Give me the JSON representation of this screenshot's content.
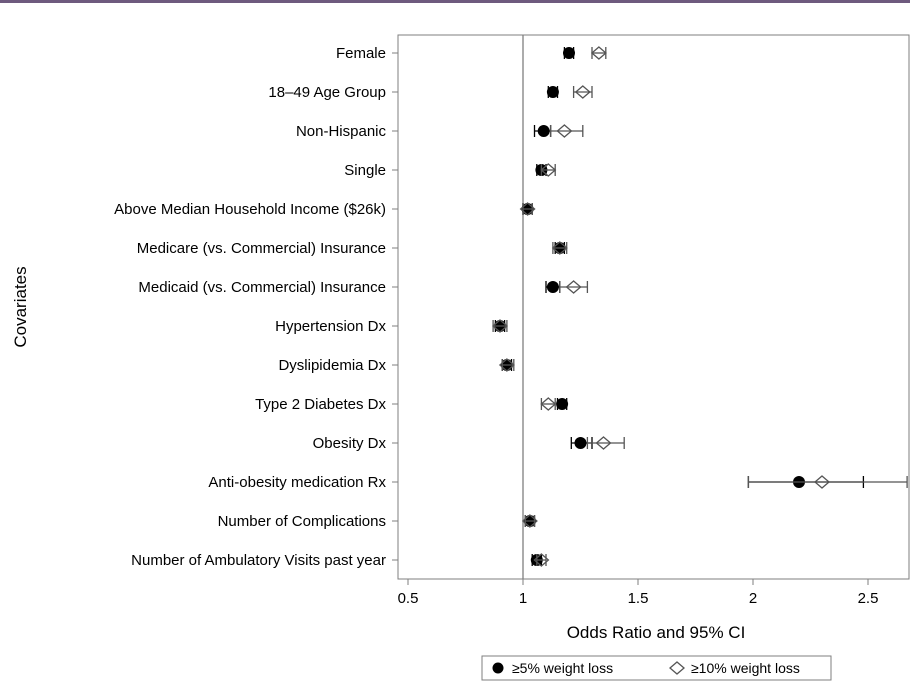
{
  "chart_data": {
    "type": "scatter",
    "title": "",
    "xlabel": "Odds Ratio and 95% CI",
    "ylabel": "Covariates",
    "xlim": [
      0.5,
      2.67
    ],
    "xticks": [
      "0.5",
      "1",
      "1.5",
      "2",
      "2.5"
    ],
    "xtick_values": [
      0.5,
      1,
      1.5,
      2,
      2.5
    ],
    "reference_line": 1,
    "grid": false,
    "legend_position": "bottom",
    "categories": [
      "Female",
      "18–49 Age Group",
      "Non-Hispanic",
      "Single",
      "Above Median Household Income ($26k)",
      "Medicare (vs. Commercial) Insurance",
      "Medicaid (vs. Commercial) Insurance",
      "Hypertension Dx",
      "Dyslipidemia Dx",
      "Type 2 Diabetes Dx",
      "Obesity Dx",
      "Anti-obesity medication Rx",
      "Number of Complications",
      "Number of Ambulatory Visits past year"
    ],
    "series": [
      {
        "name": "≥5% weight loss",
        "marker": "filled-circle",
        "color": "#000000",
        "or": [
          1.2,
          1.13,
          1.09,
          1.08,
          1.02,
          1.16,
          1.13,
          0.9,
          0.93,
          1.17,
          1.25,
          2.2,
          1.03,
          1.06
        ],
        "lo": [
          1.18,
          1.11,
          1.05,
          1.06,
          1.0,
          1.14,
          1.1,
          0.88,
          0.91,
          1.15,
          1.21,
          1.98,
          1.01,
          1.04
        ],
        "hi": [
          1.22,
          1.15,
          1.12,
          1.1,
          1.04,
          1.18,
          1.16,
          0.92,
          0.95,
          1.19,
          1.3,
          2.48,
          1.05,
          1.08
        ]
      },
      {
        "name": "≥10% weight loss",
        "marker": "open-diamond",
        "color": "#555555",
        "or": [
          1.33,
          1.26,
          1.18,
          1.11,
          1.02,
          1.16,
          1.22,
          0.9,
          0.93,
          1.11,
          1.35,
          2.3,
          1.03,
          1.08
        ],
        "lo": [
          1.3,
          1.22,
          1.12,
          1.08,
          1.0,
          1.13,
          1.16,
          0.87,
          0.91,
          1.08,
          1.28,
          1.98,
          1.01,
          1.06
        ],
        "hi": [
          1.36,
          1.3,
          1.26,
          1.14,
          1.04,
          1.19,
          1.28,
          0.93,
          0.96,
          1.14,
          1.44,
          2.67,
          1.05,
          1.1
        ]
      }
    ]
  }
}
